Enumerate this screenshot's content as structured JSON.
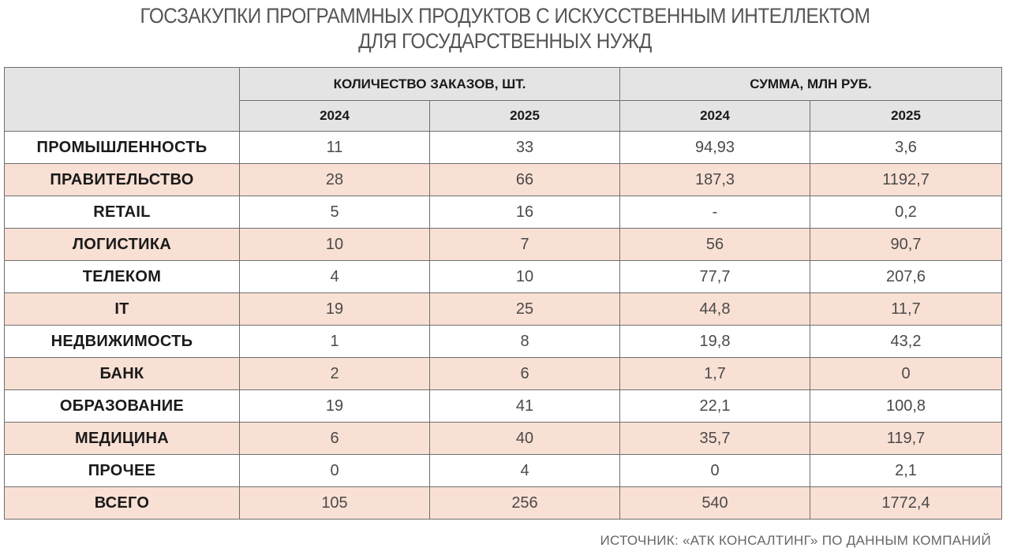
{
  "title_line1": "ГОСЗАКУПКИ ПРОГРАММНЫХ ПРОДУКТОВ С ИСКУССТВЕННЫМ ИНТЕЛЛЕКТОМ",
  "title_line2": "ДЛЯ ГОСУДАРСТВЕННЫХ НУЖД",
  "header": {
    "group_orders": "КОЛИЧЕСТВО ЗАКАЗОВ, ШТ.",
    "group_sum": "СУММА, МЛН РУБ.",
    "years": [
      "2024",
      "2025",
      "2024",
      "2025"
    ]
  },
  "colors": {
    "header_bg": "#e4e4e4",
    "shaded_row": "#f9e0d4",
    "border": "#6f6f6f"
  },
  "source": "ИСТОЧНИК: «АТК КОНСАЛТИНГ» ПО ДАННЫМ КОМПАНИЙ",
  "chart_data": {
    "type": "table",
    "columns": [
      "",
      "КОЛИЧЕСТВО ЗАКАЗОВ, ШТ. 2024",
      "КОЛИЧЕСТВО ЗАКАЗОВ, ШТ. 2025",
      "СУММА, МЛН РУБ. 2024",
      "СУММА, МЛН РУБ. 2025"
    ],
    "rows": [
      {
        "category": "ПРОМЫШЛЕННОСТЬ",
        "values": [
          "11",
          "33",
          "94,93",
          "3,6"
        ]
      },
      {
        "category": "ПРАВИТЕЛЬСТВО",
        "values": [
          "28",
          "66",
          "187,3",
          "1192,7"
        ]
      },
      {
        "category": "RETAIL",
        "values": [
          "5",
          "16",
          "-",
          "0,2"
        ]
      },
      {
        "category": "ЛОГИСТИКА",
        "values": [
          "10",
          "7",
          "56",
          "90,7"
        ]
      },
      {
        "category": "ТЕЛЕКОМ",
        "values": [
          "4",
          "10",
          "77,7",
          "207,6"
        ]
      },
      {
        "category": "IT",
        "values": [
          "19",
          "25",
          "44,8",
          "11,7"
        ]
      },
      {
        "category": "НЕДВИЖИМОСТЬ",
        "values": [
          "1",
          "8",
          "19,8",
          "43,2"
        ]
      },
      {
        "category": "БАНК",
        "values": [
          "2",
          "6",
          "1,7",
          "0"
        ]
      },
      {
        "category": "ОБРАЗОВАНИЕ",
        "values": [
          "19",
          "41",
          "22,1",
          "100,8"
        ]
      },
      {
        "category": "МЕДИЦИНА",
        "values": [
          "6",
          "40",
          "35,7",
          "119,7"
        ]
      },
      {
        "category": "ПРОЧЕЕ",
        "values": [
          "0",
          "4",
          "0",
          "2,1"
        ]
      },
      {
        "category": "ВСЕГО",
        "values": [
          "105",
          "256",
          "540",
          "1772,4"
        ]
      }
    ]
  }
}
